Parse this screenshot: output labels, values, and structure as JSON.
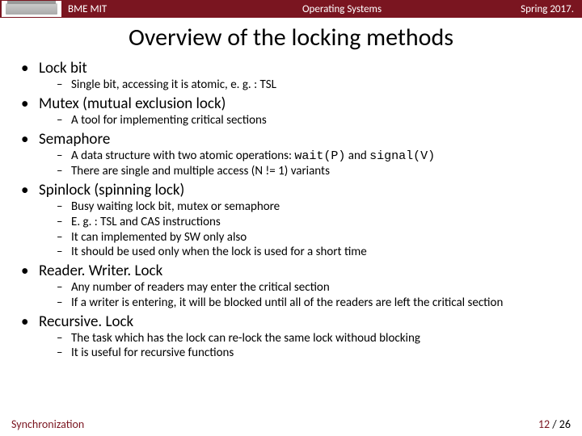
{
  "colors": {
    "brand": "#7a1520",
    "text": "#000000",
    "bg": "#ffffff"
  },
  "topbar": {
    "left": "BME MIT",
    "center": "Operating Systems",
    "right": "Spring 2017."
  },
  "title": "Overview of the locking methods",
  "typography": {
    "title_fontsize": 30,
    "item_fontsize": 19,
    "sub_fontsize": 15,
    "topbar_fontsize": 13,
    "footer_fontsize": 14
  },
  "items": [
    {
      "label": "Lock bit",
      "subs": [
        "Single bit, accessing it is atomic, e. g. : TSL"
      ]
    },
    {
      "label": "Mutex (mutual exclusion lock)",
      "subs": [
        "A tool for implementing critical sections"
      ]
    },
    {
      "label": "Semaphore",
      "subs": [
        "A data structure with two atomic operations: <span class=\"mono\">wait(P)</span> and <span class=\"mono\">signal(V)</span>",
        "There are single and multiple access (N != 1) variants"
      ]
    },
    {
      "label": "Spinlock (spinning lock)",
      "subs": [
        "Busy waiting lock bit, mutex or semaphore",
        "E. g. : TSL and CAS instructions",
        "It can implemented by SW only also",
        "It should be used only when the lock is used for a short time"
      ]
    },
    {
      "label": "Reader. Writer. Lock",
      "subs": [
        "Any number of readers may enter the critical section",
        "If a writer is entering, it will be blocked until all of the readers are left the critical section"
      ]
    },
    {
      "label": "Recursive. Lock",
      "subs": [
        "The task which has the lock can re-lock the same lock withoud blocking",
        "It is useful for recursive functions"
      ]
    }
  ],
  "footer": {
    "left": "Synchronization",
    "page_current": "12",
    "page_sep": " / ",
    "page_total": "26"
  }
}
